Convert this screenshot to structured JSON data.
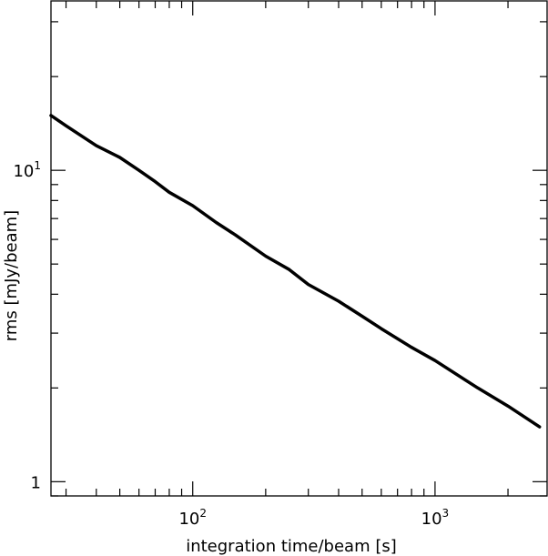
{
  "chart_data": {
    "type": "line",
    "title": "",
    "xlabel": "integration time/beam [s]",
    "ylabel": "rms [mJy/beam]",
    "xscale": "log",
    "yscale": "log",
    "xlim": [
      26,
      2900
    ],
    "ylim": [
      0.9,
      35
    ],
    "grid": false,
    "x_major_ticks": [
      {
        "value": 100,
        "base": "10",
        "exp": "2"
      },
      {
        "value": 1000,
        "base": "10",
        "exp": "3"
      }
    ],
    "y_major_ticks": [
      {
        "value": 1,
        "label": "1"
      },
      {
        "value": 10,
        "base": "10",
        "exp": "1"
      }
    ],
    "series": [
      {
        "color": "#000000",
        "x": [
          26,
          30,
          40,
          50,
          60,
          70,
          80,
          100,
          125,
          150,
          200,
          250,
          300,
          400,
          500,
          600,
          800,
          1000,
          1500,
          2000,
          2700
        ],
        "y": [
          15.0,
          13.9,
          12.0,
          11.0,
          10.0,
          9.2,
          8.5,
          7.7,
          6.8,
          6.2,
          5.3,
          4.8,
          4.3,
          3.8,
          3.4,
          3.1,
          2.7,
          2.45,
          2.0,
          1.75,
          1.5
        ]
      }
    ]
  }
}
